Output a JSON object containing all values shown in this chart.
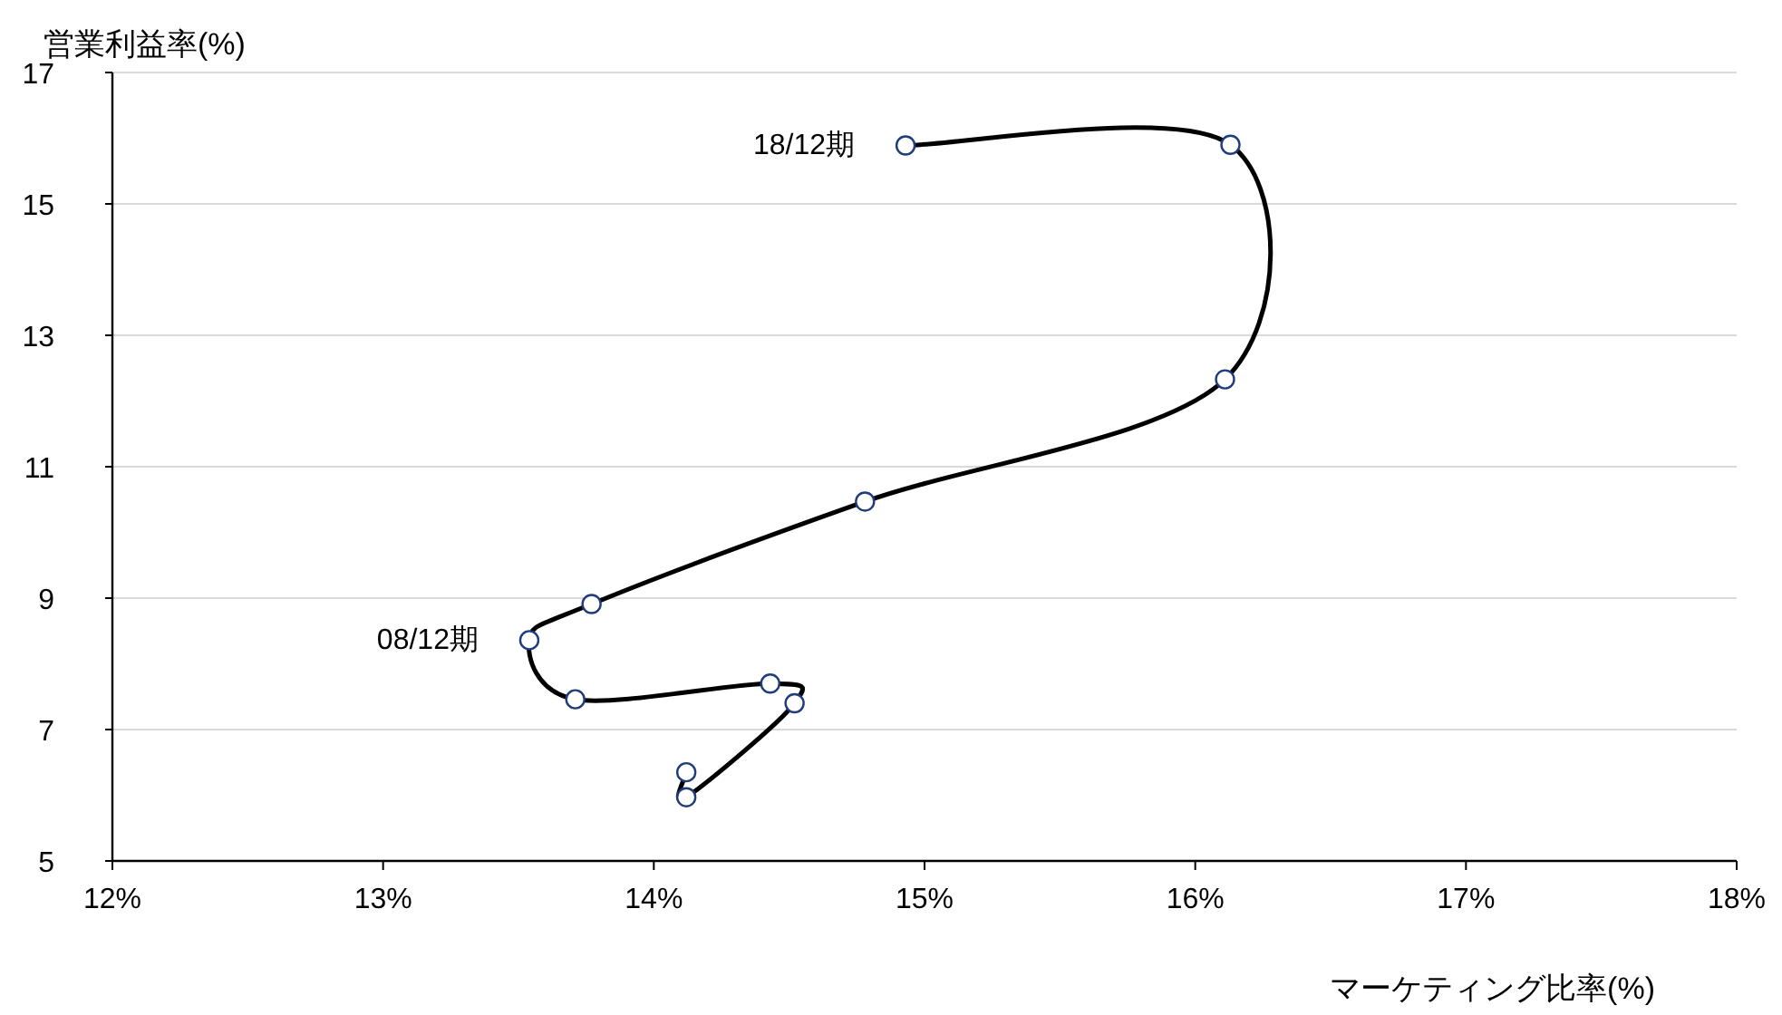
{
  "chart_data": {
    "type": "line",
    "xlabel": "マーケティング比率(%)",
    "ylabel": "営業利益率(%)",
    "x": [
      14.12,
      14.12,
      14.52,
      14.43,
      13.71,
      13.54,
      13.77,
      14.78,
      16.11,
      16.13,
      14.93
    ],
    "series": [
      {
        "color": "#000000",
        "values": [
          6.35,
          5.97,
          7.4,
          7.7,
          7.46,
          8.36,
          8.91,
          10.47,
          12.33,
          15.9,
          15.89
        ]
      }
    ],
    "xlim": [
      12,
      18
    ],
    "xticks": [
      {
        "value": 12,
        "label": "12%"
      },
      {
        "value": 13,
        "label": "13%"
      },
      {
        "value": 14,
        "label": "14%"
      },
      {
        "value": 15,
        "label": "15%"
      },
      {
        "value": 16,
        "label": "16%"
      },
      {
        "value": 17,
        "label": "17%"
      },
      {
        "value": 18,
        "label": "18%"
      }
    ],
    "ylim": [
      5,
      17
    ],
    "yticks": [
      5,
      7,
      9,
      11,
      13,
      15,
      17
    ],
    "grid": "y",
    "marker": "circle",
    "line_style": "solid",
    "annotations": [
      {
        "text": "08/12期",
        "x": 13.54,
        "y": 8.36
      },
      {
        "text": "18/12期",
        "x": 14.93,
        "y": 15.89
      }
    ]
  }
}
